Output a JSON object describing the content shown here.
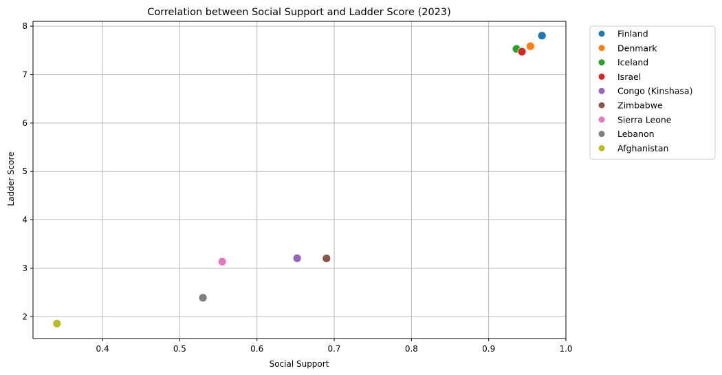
{
  "chart_data": {
    "type": "scatter",
    "title": "Correlation between Social Support and Ladder Score (2023)",
    "xlabel": "Social Support",
    "ylabel": "Ladder Score",
    "xlim": [
      0.31,
      1.0
    ],
    "ylim": [
      1.55,
      8.1
    ],
    "xticks": [
      0.4,
      0.5,
      0.6,
      0.7,
      0.8,
      0.9,
      1.0
    ],
    "yticks": [
      2,
      3,
      4,
      5,
      6,
      7,
      8
    ],
    "grid": true,
    "legend_position": "outside-right",
    "series": [
      {
        "name": "Finland",
        "color": "#1f77b4",
        "x": 0.969,
        "y": 7.804
      },
      {
        "name": "Denmark",
        "color": "#ff7f0e",
        "x": 0.954,
        "y": 7.586
      },
      {
        "name": "Iceland",
        "color": "#2ca02c",
        "x": 0.936,
        "y": 7.53
      },
      {
        "name": "Israel",
        "color": "#d62728",
        "x": 0.943,
        "y": 7.473
      },
      {
        "name": "Congo (Kinshasa)",
        "color": "#9467bd",
        "x": 0.652,
        "y": 3.207
      },
      {
        "name": "Zimbabwe",
        "color": "#8c564b",
        "x": 0.69,
        "y": 3.204
      },
      {
        "name": "Sierra Leone",
        "color": "#e377c2",
        "x": 0.555,
        "y": 3.138
      },
      {
        "name": "Lebanon",
        "color": "#7f7f7f",
        "x": 0.53,
        "y": 2.392
      },
      {
        "name": "Afghanistan",
        "color": "#bcbd22",
        "x": 0.341,
        "y": 1.859
      }
    ]
  }
}
